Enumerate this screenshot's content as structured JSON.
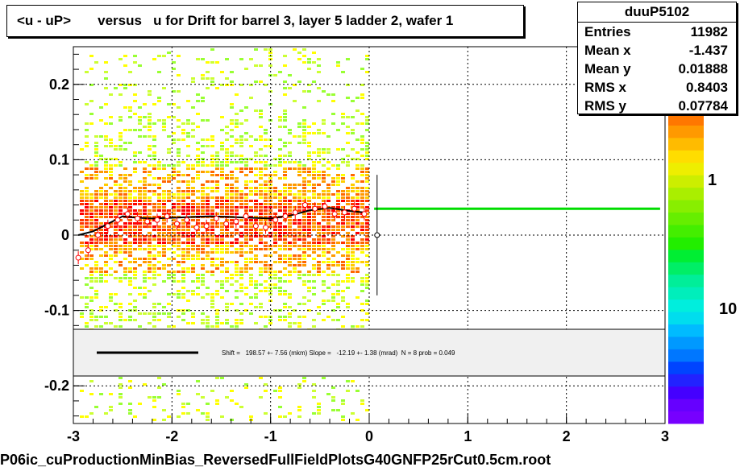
{
  "title": "<u - uP>       versus   u for Drift for barrel 3, layer 5 ladder 2, wafer 1",
  "stats": {
    "name": "duuP5102",
    "rows": [
      {
        "label": "Entries",
        "value": "11982"
      },
      {
        "label": "Mean x",
        "value": "-1.437"
      },
      {
        "label": "Mean y",
        "value": "0.01888"
      },
      {
        "label": "RMS x",
        "value": "0.8403"
      },
      {
        "label": "RMS y",
        "value": "0.07784"
      }
    ]
  },
  "fit_legend": "Shift =   198.57 +- 7.56 (mkm) Slope =   -12.19 +- 1.38 (mrad)  N = 8 prob = 0.049",
  "footer": "P06ic_cuProductionMinBias_ReversedFullFieldPlotsG40GNFP25rCut0.5cm.root",
  "colors": {
    "fit_line": "#00dd00",
    "profile": "#ff0000",
    "smooth": "#000000",
    "legend_bg": "#f0f0f0"
  },
  "chart_data": {
    "type": "heatmap",
    "xlim": [
      -3,
      3
    ],
    "ylim": [
      -0.25,
      0.25
    ],
    "x_ticks": [
      -3,
      -2,
      -1,
      0,
      1,
      2,
      3
    ],
    "x_tick_labels": [
      "-3",
      "-2",
      "-1",
      "0",
      "1",
      "2",
      "3"
    ],
    "y_ticks": [
      -0.2,
      -0.1,
      0,
      0.1,
      0.2
    ],
    "y_tick_labels": [
      "-0.2",
      "-0.1",
      "0",
      "0.1",
      "0.2"
    ],
    "grid": true,
    "colorbar_labels": [
      "1",
      "10"
    ],
    "profile": {
      "x": [
        -2.95,
        -2.85,
        -2.75,
        -2.65,
        -2.55,
        -2.45,
        -2.35,
        -2.25,
        -2.15,
        -2.05,
        -1.95,
        -1.85,
        -1.75,
        -1.65,
        -1.55,
        -1.45,
        -1.35,
        -1.25,
        -1.15,
        -1.05,
        -0.95,
        -0.85,
        -0.75,
        -0.65,
        -0.55,
        -0.45,
        -0.35,
        -0.25,
        -0.15,
        -0.05
      ],
      "y": [
        -0.03,
        -0.02,
        0.0,
        0.012,
        0.02,
        0.028,
        0.022,
        0.018,
        0.02,
        0.025,
        0.015,
        0.02,
        0.01,
        0.012,
        0.022,
        0.015,
        0.018,
        0.025,
        0.012,
        0.01,
        0.02,
        0.025,
        0.03,
        0.04,
        0.035,
        0.038,
        0.028,
        0.03,
        0.035,
        0.028
      ]
    },
    "smooth_curve": {
      "x": [
        -2.95,
        -2.8,
        -2.65,
        -2.5,
        -2.35,
        -2.2,
        -2.0,
        -1.8,
        -1.6,
        -1.4,
        -1.2,
        -1.0,
        -0.8,
        -0.6,
        -0.4,
        -0.2,
        -0.05
      ],
      "y": [
        0.0,
        0.005,
        0.015,
        0.025,
        0.023,
        0.022,
        0.023,
        0.024,
        0.025,
        0.024,
        0.023,
        0.022,
        0.026,
        0.033,
        0.036,
        0.032,
        0.03
      ]
    },
    "fit_line": {
      "x": [
        0.05,
        2.95
      ],
      "y": [
        0.035,
        0.035
      ]
    },
    "extra_point": {
      "x": 0.08,
      "y": 0.0,
      "yerr": 0.08
    }
  }
}
